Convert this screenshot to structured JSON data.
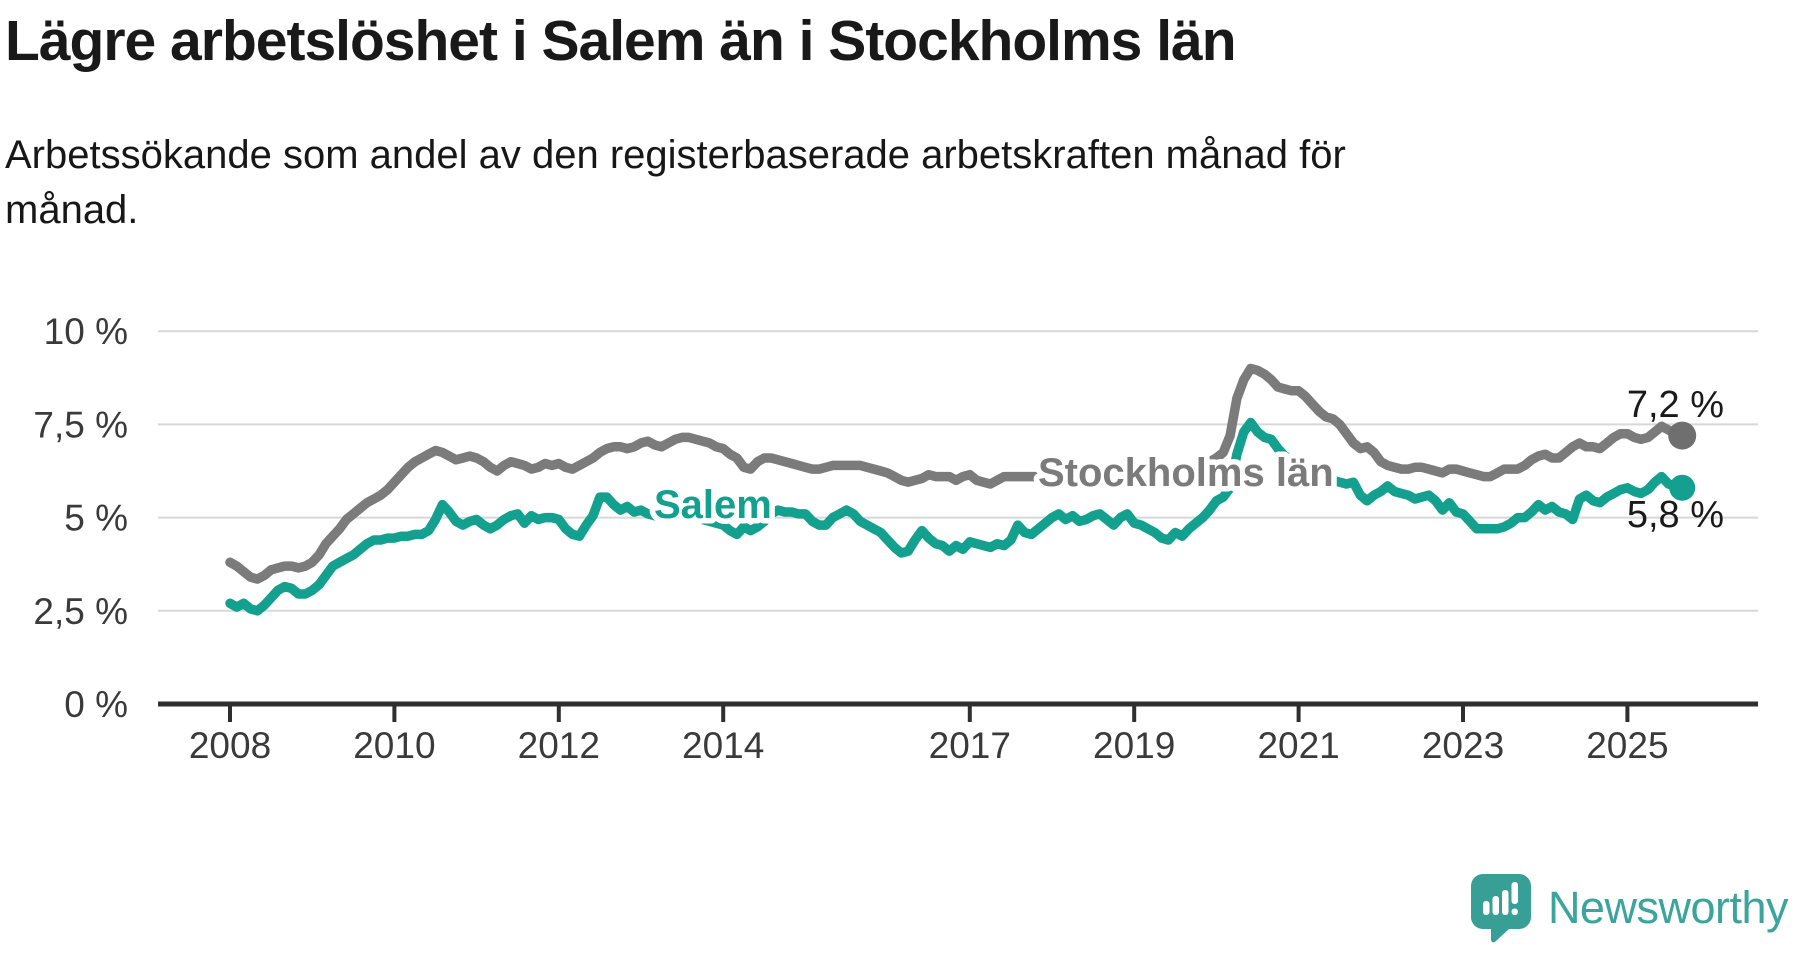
{
  "title": "Lägre arbetslöshet i Salem än i Stockholms län",
  "subtitle": "Arbetssökande som andel av den registerbaserade arbetskraften månad för månad.",
  "branding": {
    "logo_text": "Newsworthy",
    "logo_icon": "newsworthy-speech-bubble-bar-chart-icon",
    "logo_color": "#3ba49c",
    "logo_icon_color": "#379f96"
  },
  "colors": {
    "background": "#ffffff",
    "title_text": "#191919",
    "subtitle_text": "#171717",
    "axis_line": "#2f2f2f",
    "axis_label": "#3a3a3a",
    "gridline": "#d8d8d8",
    "value_label": "#1a1a1a",
    "series_stockholm": "#7b7b7b",
    "series_salem": "#13a08e"
  },
  "chart_data": {
    "type": "line",
    "title": "Lägre arbetslöshet i Salem än i Stockholms län",
    "subtitle": "Arbetssökande som andel av den registerbaserade arbetskraften månad för månad.",
    "unit": "%",
    "grid": true,
    "legend": "inline-labels",
    "x_axis": {
      "start": "2008-01",
      "end": "2025-09",
      "step_months": 1,
      "ticks": [
        {
          "label": "2008",
          "year": 2008
        },
        {
          "label": "2010",
          "year": 2010
        },
        {
          "label": "2012",
          "year": 2012
        },
        {
          "label": "2014",
          "year": 2014
        },
        {
          "label": "2017",
          "year": 2017
        },
        {
          "label": "2019",
          "year": 2019
        },
        {
          "label": "2021",
          "year": 2021
        },
        {
          "label": "2023",
          "year": 2023
        },
        {
          "label": "2025",
          "year": 2025
        }
      ]
    },
    "y_axis": {
      "range": [
        0,
        10
      ],
      "ticks": [
        {
          "label": "0 %",
          "value": 0
        },
        {
          "label": "2,5 %",
          "value": 2.5
        },
        {
          "label": "5 %",
          "value": 5
        },
        {
          "label": "7,5 %",
          "value": 7.5
        },
        {
          "label": "10 %",
          "value": 10
        }
      ]
    },
    "series": [
      {
        "name": "Stockholms län",
        "color": "#7b7b7b",
        "dot_color": "#6f6f6f",
        "end_label": "7,2 %",
        "end_value": 7.2,
        "start": "2008-01",
        "step_months": 1,
        "values": [
          3.8,
          3.7,
          3.55,
          3.4,
          3.35,
          3.45,
          3.6,
          3.65,
          3.7,
          3.7,
          3.65,
          3.7,
          3.8,
          4.0,
          4.3,
          4.5,
          4.7,
          4.95,
          5.1,
          5.25,
          5.4,
          5.5,
          5.6,
          5.75,
          5.95,
          6.15,
          6.35,
          6.5,
          6.6,
          6.7,
          6.8,
          6.75,
          6.65,
          6.55,
          6.6,
          6.65,
          6.6,
          6.5,
          6.35,
          6.25,
          6.4,
          6.5,
          6.45,
          6.4,
          6.3,
          6.35,
          6.45,
          6.4,
          6.45,
          6.35,
          6.3,
          6.4,
          6.5,
          6.6,
          6.75,
          6.85,
          6.9,
          6.9,
          6.85,
          6.9,
          7.0,
          7.05,
          6.95,
          6.9,
          7.0,
          7.1,
          7.15,
          7.15,
          7.1,
          7.05,
          7.0,
          6.9,
          6.85,
          6.7,
          6.6,
          6.35,
          6.3,
          6.5,
          6.6,
          6.6,
          6.55,
          6.5,
          6.45,
          6.4,
          6.35,
          6.3,
          6.3,
          6.35,
          6.4,
          6.4,
          6.4,
          6.4,
          6.4,
          6.35,
          6.3,
          6.25,
          6.2,
          6.1,
          6.0,
          5.95,
          6.0,
          6.05,
          6.15,
          6.1,
          6.1,
          6.1,
          6.0,
          6.1,
          6.15,
          6.0,
          5.95,
          5.9,
          6.0,
          6.1,
          6.1,
          6.1,
          6.1,
          6.1,
          6.1,
          6.1,
          6.1,
          6.05,
          6.0,
          6.0,
          6.0,
          6.0,
          6.05,
          6.05,
          6.0,
          6.0,
          6.0,
          6.05,
          6.05,
          6.1,
          6.1,
          6.1,
          6.15,
          6.2,
          6.3,
          6.3,
          6.3,
          6.35,
          6.4,
          6.5,
          6.6,
          6.75,
          7.2,
          8.2,
          8.7,
          9.0,
          8.95,
          8.85,
          8.7,
          8.5,
          8.45,
          8.4,
          8.4,
          8.25,
          8.05,
          7.85,
          7.7,
          7.65,
          7.5,
          7.25,
          7.0,
          6.85,
          6.9,
          6.75,
          6.5,
          6.4,
          6.35,
          6.3,
          6.3,
          6.35,
          6.35,
          6.3,
          6.25,
          6.2,
          6.3,
          6.3,
          6.25,
          6.2,
          6.15,
          6.1,
          6.1,
          6.2,
          6.3,
          6.3,
          6.3,
          6.4,
          6.55,
          6.65,
          6.7,
          6.6,
          6.6,
          6.75,
          6.9,
          7.0,
          6.9,
          6.9,
          6.85,
          7.0,
          7.15,
          7.25,
          7.25,
          7.15,
          7.1,
          7.15,
          7.3,
          7.45,
          7.35,
          7.25,
          7.2
        ]
      },
      {
        "name": "Salem",
        "color": "#13a08e",
        "dot_color": "#13a08e",
        "end_label": "5,8 %",
        "end_value": 5.8,
        "start": "2008-01",
        "step_months": 1,
        "values": [
          2.7,
          2.6,
          2.7,
          2.55,
          2.5,
          2.65,
          2.85,
          3.05,
          3.15,
          3.1,
          2.95,
          2.95,
          3.05,
          3.2,
          3.45,
          3.7,
          3.8,
          3.9,
          4.0,
          4.15,
          4.3,
          4.4,
          4.4,
          4.45,
          4.45,
          4.5,
          4.5,
          4.55,
          4.55,
          4.65,
          4.95,
          5.35,
          5.15,
          4.9,
          4.8,
          4.9,
          4.95,
          4.8,
          4.7,
          4.8,
          4.95,
          5.05,
          5.1,
          4.85,
          5.05,
          4.95,
          5.0,
          5.0,
          4.95,
          4.7,
          4.55,
          4.5,
          4.8,
          5.05,
          5.55,
          5.55,
          5.35,
          5.2,
          5.3,
          5.15,
          5.2,
          5.1,
          5.05,
          5.0,
          5.0,
          5.05,
          5.1,
          5.05,
          5.0,
          4.95,
          4.9,
          4.85,
          4.8,
          4.65,
          4.55,
          4.75,
          4.65,
          4.75,
          4.9,
          5.1,
          5.2,
          5.15,
          5.15,
          5.1,
          5.1,
          4.9,
          4.8,
          4.8,
          5.0,
          5.1,
          5.2,
          5.1,
          4.9,
          4.8,
          4.7,
          4.6,
          4.4,
          4.2,
          4.05,
          4.1,
          4.4,
          4.65,
          4.45,
          4.3,
          4.25,
          4.1,
          4.25,
          4.15,
          4.35,
          4.3,
          4.25,
          4.2,
          4.3,
          4.25,
          4.4,
          4.8,
          4.6,
          4.55,
          4.7,
          4.85,
          5.0,
          5.1,
          4.95,
          5.05,
          4.9,
          4.95,
          5.05,
          5.1,
          4.95,
          4.8,
          5.0,
          5.1,
          4.85,
          4.8,
          4.7,
          4.6,
          4.45,
          4.4,
          4.6,
          4.5,
          4.7,
          4.85,
          5.0,
          5.2,
          5.45,
          5.55,
          5.8,
          6.7,
          7.3,
          7.55,
          7.3,
          7.15,
          7.1,
          6.85,
          6.65,
          6.55,
          6.45,
          6.35,
          6.25,
          6.15,
          6.05,
          6.0,
          5.95,
          5.9,
          5.95,
          5.6,
          5.45,
          5.6,
          5.7,
          5.85,
          5.7,
          5.65,
          5.6,
          5.5,
          5.55,
          5.6,
          5.45,
          5.2,
          5.4,
          5.15,
          5.1,
          4.9,
          4.7,
          4.7,
          4.7,
          4.7,
          4.75,
          4.85,
          5.0,
          5.0,
          5.15,
          5.35,
          5.2,
          5.3,
          5.15,
          5.1,
          4.95,
          5.5,
          5.6,
          5.45,
          5.4,
          5.55,
          5.65,
          5.75,
          5.8,
          5.7,
          5.65,
          5.75,
          5.95,
          6.1,
          5.9,
          5.85,
          5.8
        ]
      }
    ]
  }
}
